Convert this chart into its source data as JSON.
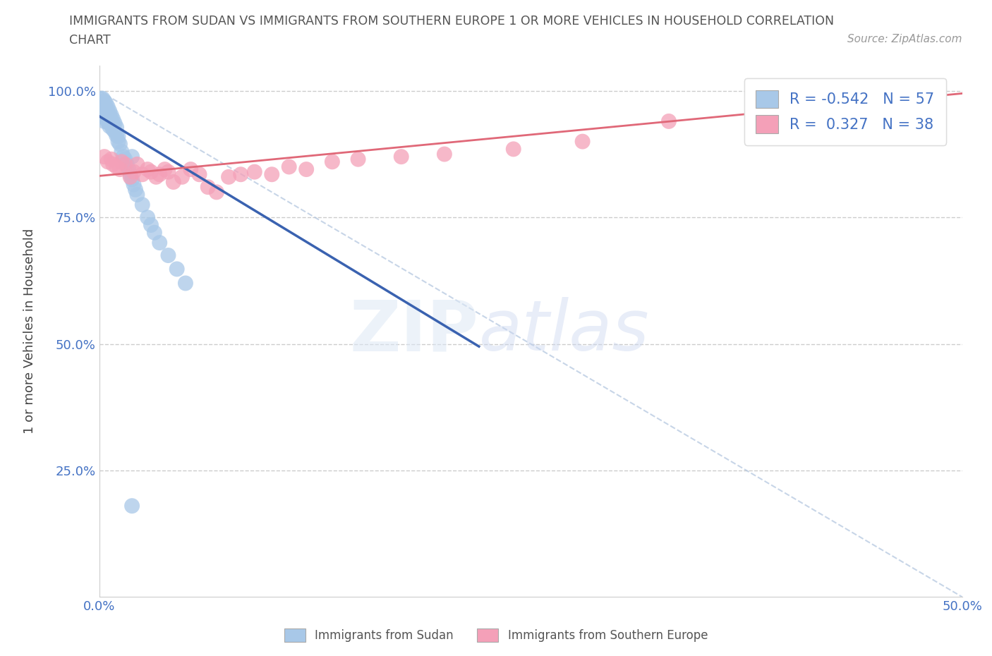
{
  "title_line1": "IMMIGRANTS FROM SUDAN VS IMMIGRANTS FROM SOUTHERN EUROPE 1 OR MORE VEHICLES IN HOUSEHOLD CORRELATION",
  "title_line2": "CHART",
  "source_text": "Source: ZipAtlas.com",
  "ylabel": "1 or more Vehicles in Household",
  "xlim": [
    0.0,
    0.5
  ],
  "ylim": [
    0.0,
    1.05
  ],
  "sudan_R": -0.542,
  "sudan_N": 57,
  "s_europe_R": 0.327,
  "s_europe_N": 38,
  "sudan_color": "#a8c8e8",
  "s_europe_color": "#f4a0b8",
  "sudan_line_color": "#3a62b0",
  "s_europe_line_color": "#e06878",
  "legend_label_sudan": "Immigrants from Sudan",
  "legend_label_s_europe": "Immigrants from Southern Europe",
  "sudan_x": [
    0.001,
    0.001,
    0.001,
    0.002,
    0.002,
    0.002,
    0.002,
    0.003,
    0.003,
    0.003,
    0.003,
    0.003,
    0.004,
    0.004,
    0.004,
    0.004,
    0.005,
    0.005,
    0.005,
    0.005,
    0.006,
    0.006,
    0.006,
    0.006,
    0.007,
    0.007,
    0.007,
    0.008,
    0.008,
    0.008,
    0.009,
    0.009,
    0.01,
    0.01,
    0.011,
    0.011,
    0.012,
    0.013,
    0.014,
    0.015,
    0.016,
    0.017,
    0.018,
    0.019,
    0.02,
    0.021,
    0.022,
    0.025,
    0.028,
    0.03,
    0.032,
    0.035,
    0.04,
    0.045,
    0.05,
    0.019,
    0.019
  ],
  "sudan_y": [
    0.985,
    0.975,
    0.965,
    0.985,
    0.97,
    0.96,
    0.95,
    0.98,
    0.97,
    0.96,
    0.95,
    0.94,
    0.975,
    0.965,
    0.955,
    0.945,
    0.968,
    0.958,
    0.948,
    0.938,
    0.96,
    0.95,
    0.94,
    0.93,
    0.952,
    0.942,
    0.932,
    0.944,
    0.934,
    0.924,
    0.936,
    0.92,
    0.928,
    0.912,
    0.91,
    0.9,
    0.895,
    0.88,
    0.87,
    0.865,
    0.855,
    0.845,
    0.835,
    0.825,
    0.815,
    0.805,
    0.795,
    0.775,
    0.75,
    0.735,
    0.72,
    0.7,
    0.675,
    0.648,
    0.62,
    0.87,
    0.18
  ],
  "s_europe_x": [
    0.003,
    0.005,
    0.007,
    0.008,
    0.01,
    0.012,
    0.013,
    0.015,
    0.018,
    0.02,
    0.022,
    0.025,
    0.028,
    0.03,
    0.033,
    0.035,
    0.038,
    0.04,
    0.043,
    0.048,
    0.053,
    0.058,
    0.063,
    0.068,
    0.075,
    0.082,
    0.09,
    0.1,
    0.11,
    0.12,
    0.135,
    0.15,
    0.175,
    0.2,
    0.24,
    0.28,
    0.33,
    0.39
  ],
  "s_europe_y": [
    0.87,
    0.86,
    0.865,
    0.855,
    0.85,
    0.845,
    0.86,
    0.855,
    0.83,
    0.84,
    0.855,
    0.835,
    0.845,
    0.84,
    0.83,
    0.835,
    0.845,
    0.84,
    0.82,
    0.83,
    0.845,
    0.835,
    0.81,
    0.8,
    0.83,
    0.835,
    0.84,
    0.835,
    0.85,
    0.845,
    0.86,
    0.865,
    0.87,
    0.875,
    0.885,
    0.9,
    0.94,
    0.99
  ],
  "sudan_line_x0": 0.0,
  "sudan_line_y0": 0.95,
  "sudan_line_x1": 0.22,
  "sudan_line_y1": 0.495,
  "s_europe_line_x0": 0.0,
  "s_europe_line_y0": 0.832,
  "s_europe_line_x1": 0.5,
  "s_europe_line_y1": 0.995
}
